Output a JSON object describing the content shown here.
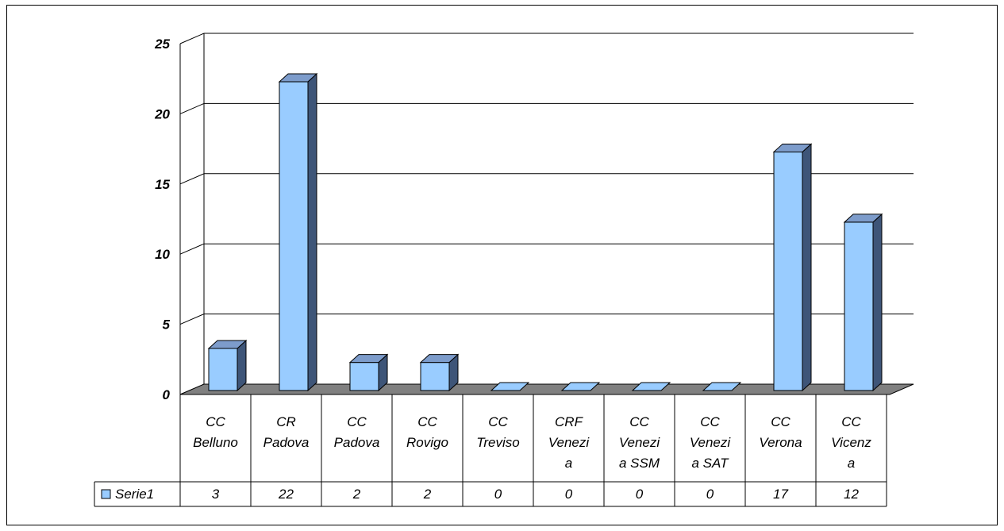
{
  "chart_data": {
    "type": "bar",
    "categories": [
      [
        "CC",
        "Belluno"
      ],
      [
        "CR",
        "Padova"
      ],
      [
        "CC",
        "Padova"
      ],
      [
        "CC",
        "Rovigo"
      ],
      [
        "CC",
        "Treviso"
      ],
      [
        "CRF",
        "Venezi",
        "a"
      ],
      [
        "CC",
        "Venezi",
        "a SSM"
      ],
      [
        "CC",
        "Venezi",
        "a SAT"
      ],
      [
        "CC",
        "Verona"
      ],
      [
        "CC",
        "Vicenz",
        "a"
      ]
    ],
    "series": [
      {
        "name": "Serie1",
        "values": [
          3,
          22,
          2,
          2,
          0,
          0,
          0,
          0,
          17,
          12
        ]
      }
    ],
    "y_ticks": [
      "0",
      "5",
      "10",
      "15",
      "20",
      "25"
    ],
    "ylim": [
      0,
      25
    ],
    "grid": true,
    "legend": "data-table-left",
    "colors": {
      "bar_front": "#99ccff",
      "bar_side": "#3e5578",
      "bar_top": "#7d9ccb",
      "floor": "#808080"
    }
  }
}
